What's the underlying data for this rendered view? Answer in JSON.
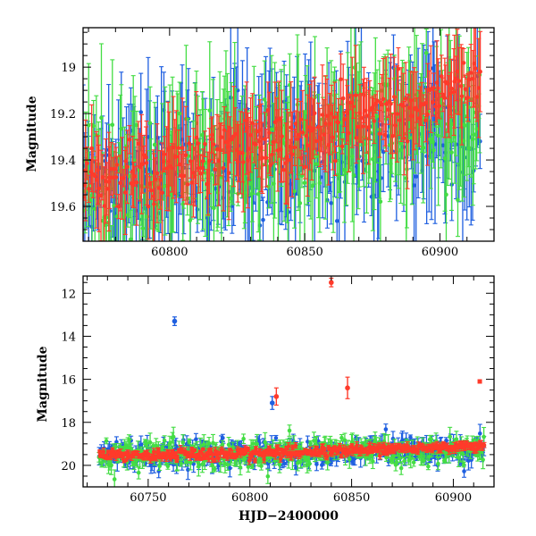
{
  "chart_data": [
    {
      "type": "scatter",
      "panel": "top",
      "xlabel": "",
      "ylabel": "Magnitude",
      "xlim": [
        60768,
        60920
      ],
      "ylim": [
        19.75,
        18.83
      ],
      "y_inverted": true,
      "xticks": [
        60800,
        60850,
        60900
      ],
      "xticklabels": [
        "60800",
        "60850",
        "60900"
      ],
      "yticks": [
        19.0,
        19.2,
        19.4,
        19.6
      ],
      "yticklabels": [
        "19",
        "19.2",
        "19.4",
        "19.6"
      ],
      "grid": false,
      "error_bars": true,
      "series_colors": [
        "#1f5fe0",
        "#44dd44",
        "#ff3a2a"
      ],
      "series": [
        {
          "color": "#1f5fe0",
          "trend": [
            [
              60768,
              19.55
            ],
            [
              60800,
              19.45
            ],
            [
              60830,
              19.38
            ],
            [
              60860,
              19.35
            ],
            [
              60880,
              19.3
            ],
            [
              60900,
              19.25
            ],
            [
              60915,
              19.3
            ]
          ],
          "scatter": 0.12,
          "error_range": [
            0.05,
            0.35
          ]
        },
        {
          "color": "#44dd44",
          "trend": [
            [
              60768,
              19.5
            ],
            [
              60800,
              19.45
            ],
            [
              60830,
              19.35
            ],
            [
              60860,
              19.3
            ],
            [
              60880,
              19.25
            ],
            [
              60900,
              19.2
            ],
            [
              60915,
              19.22
            ]
          ],
          "scatter": 0.13,
          "error_range": [
            0.05,
            0.35
          ]
        },
        {
          "color": "#ff3a2a",
          "trend": [
            [
              60768,
              19.47
            ],
            [
              60800,
              19.45
            ],
            [
              60820,
              19.37
            ],
            [
              60850,
              19.3
            ],
            [
              60870,
              19.22
            ],
            [
              60885,
              19.2
            ],
            [
              60900,
              19.08
            ],
            [
              60915,
              19.07
            ]
          ],
          "scatter": 0.07,
          "error_range": [
            0.03,
            0.22
          ]
        }
      ]
    },
    {
      "type": "scatter",
      "panel": "bottom",
      "xlabel": "HJD−2400000",
      "ylabel": "Magnitude",
      "xlim": [
        60718,
        60920
      ],
      "ylim": [
        21.0,
        11.2
      ],
      "y_inverted": true,
      "xticks": [
        60750,
        60800,
        60850,
        60900
      ],
      "xticklabels": [
        "60750",
        "60800",
        "60850",
        "60900"
      ],
      "yticks": [
        12,
        14,
        16,
        18,
        20
      ],
      "yticklabels": [
        "12",
        "14",
        "16",
        "18",
        "20"
      ],
      "grid": false,
      "error_bars": true,
      "series_colors": [
        "#1f5fe0",
        "#44dd44",
        "#ff3a2a"
      ],
      "series": [
        {
          "color": "#1f5fe0",
          "trend": [
            [
              60725,
              19.6
            ],
            [
              60760,
              19.55
            ],
            [
              60800,
              19.45
            ],
            [
              60850,
              19.35
            ],
            [
              60880,
              19.3
            ],
            [
              60915,
              19.3
            ]
          ],
          "scatter": 0.3,
          "error_range": [
            0.1,
            0.45
          ]
        },
        {
          "color": "#44dd44",
          "trend": [
            [
              60725,
              19.6
            ],
            [
              60760,
              19.5
            ],
            [
              60800,
              19.45
            ],
            [
              60850,
              19.3
            ],
            [
              60880,
              19.25
            ],
            [
              60915,
              19.22
            ]
          ],
          "scatter": 0.32,
          "error_range": [
            0.1,
            0.45
          ]
        },
        {
          "color": "#ff3a2a",
          "trend": [
            [
              60725,
              19.55
            ],
            [
              60760,
              19.5
            ],
            [
              60800,
              19.45
            ],
            [
              60850,
              19.3
            ],
            [
              60880,
              19.2
            ],
            [
              60915,
              19.1
            ]
          ],
          "scatter": 0.12,
          "error_range": [
            0.05,
            0.2
          ]
        }
      ],
      "outliers": [
        {
          "x": 60763,
          "y": 13.3,
          "err": 0.2,
          "color": "#1f5fe0"
        },
        {
          "x": 60811,
          "y": 17.1,
          "err": 0.3,
          "color": "#1f5fe0"
        },
        {
          "x": 60813,
          "y": 16.8,
          "err": 0.4,
          "color": "#ff3a2a"
        },
        {
          "x": 60840,
          "y": 11.5,
          "err": 0.2,
          "color": "#ff3a2a"
        },
        {
          "x": 60848,
          "y": 16.4,
          "err": 0.5,
          "color": "#ff3a2a"
        },
        {
          "x": 60913,
          "y": 16.1,
          "err": 0.0,
          "color": "#ff3a2a"
        }
      ]
    }
  ]
}
